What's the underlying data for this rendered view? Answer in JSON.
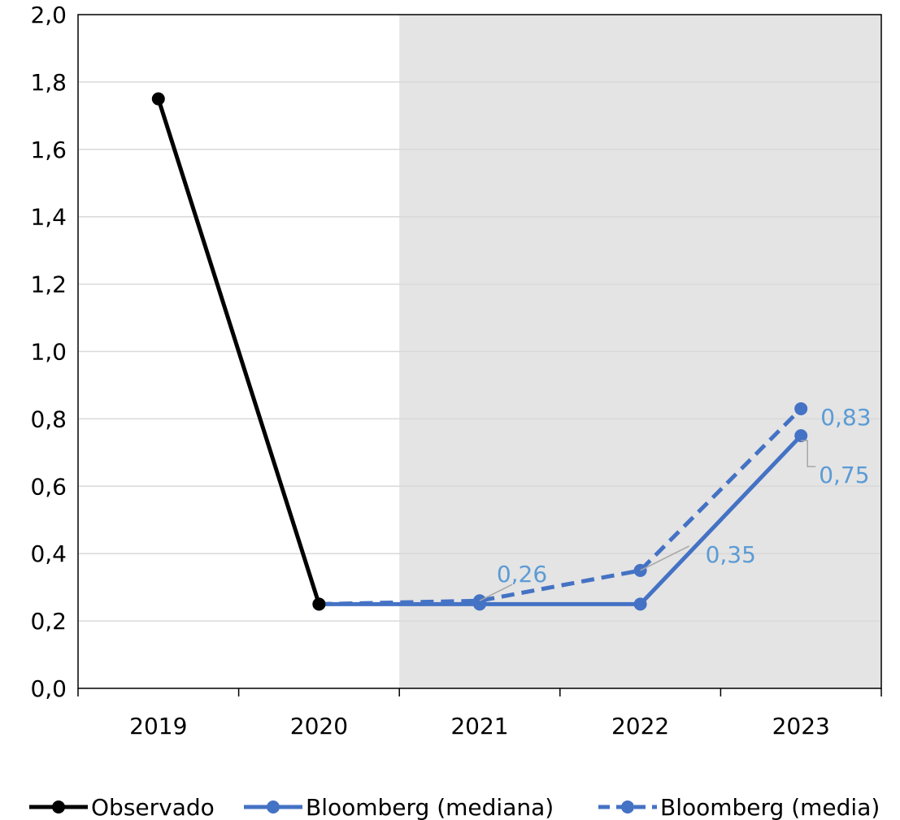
{
  "chart_data": {
    "type": "line",
    "categories": [
      "2019",
      "2020",
      "2021",
      "2022",
      "2023"
    ],
    "ylim": [
      0,
      2.0
    ],
    "ytick_labels": [
      "0,0",
      "0,2",
      "0,4",
      "0,6",
      "0,8",
      "1,0",
      "1,2",
      "1,4",
      "1,6",
      "1,8",
      "2,0"
    ],
    "ytick_values": [
      0,
      0.2,
      0.4,
      0.6,
      0.8,
      1.0,
      1.2,
      1.4,
      1.6,
      1.8,
      2.0
    ],
    "grid": true,
    "shaded_region": {
      "from_category": "2021",
      "to_category": "2023",
      "color": "#e4e4e4"
    },
    "legend_position": "bottom",
    "series": [
      {
        "name": "Observado",
        "values": [
          1.75,
          0.25,
          null,
          null,
          null
        ],
        "color": "#000000",
        "dashed": false
      },
      {
        "name": "Bloomberg (mediana)",
        "values": [
          null,
          0.25,
          0.25,
          0.25,
          0.75
        ],
        "color": "#4472c4",
        "dashed": false
      },
      {
        "name": "Bloomberg (media)",
        "values": [
          null,
          0.25,
          0.26,
          0.35,
          0.83
        ],
        "color": "#4472c4",
        "dashed": true
      }
    ],
    "data_labels": [
      {
        "series": 2,
        "index": 2,
        "text": "0,26"
      },
      {
        "series": 2,
        "index": 3,
        "text": "0,35"
      },
      {
        "series": 2,
        "index": 4,
        "text": "0,83"
      },
      {
        "series": 1,
        "index": 4,
        "text": "0,75"
      }
    ],
    "label_color": "#5b9bd5"
  }
}
